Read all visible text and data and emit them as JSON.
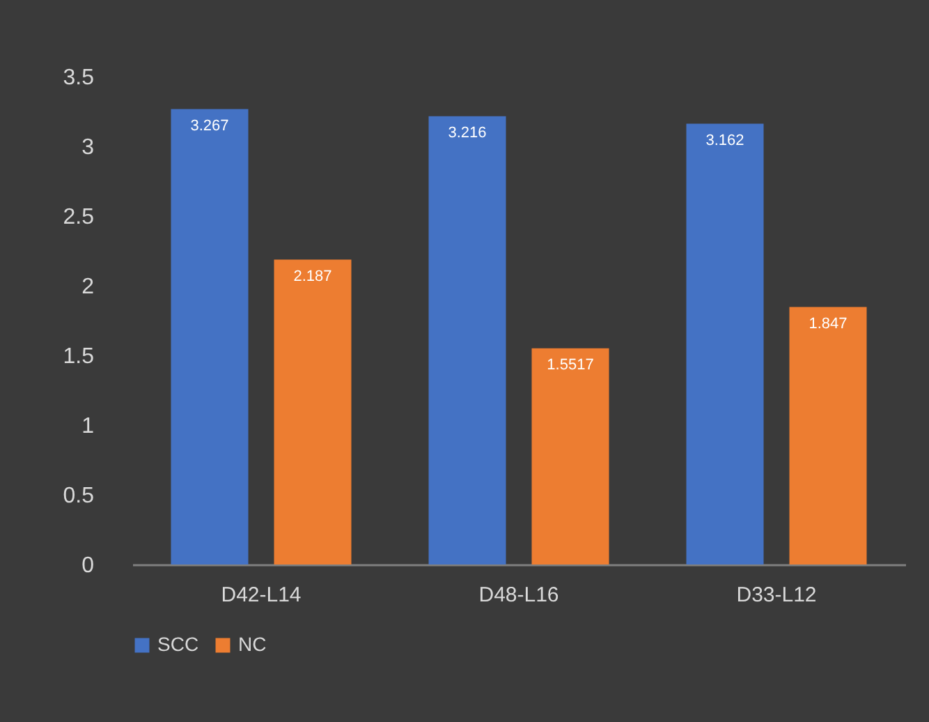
{
  "chart_data": {
    "type": "bar",
    "categories": [
      "D42-L14",
      "D48-L16",
      "D33-L12"
    ],
    "series": [
      {
        "name": "SCC",
        "color": "#4472c4",
        "values": [
          3.267,
          3.216,
          3.162
        ]
      },
      {
        "name": "NC",
        "color": "#ed7d31",
        "values": [
          2.187,
          1.5517,
          1.847
        ]
      }
    ],
    "ylim": [
      0,
      3.5
    ],
    "yticks": [
      0,
      0.5,
      1,
      1.5,
      2,
      2.5,
      3,
      3.5
    ],
    "data_labels": true,
    "legend": "bottom"
  }
}
